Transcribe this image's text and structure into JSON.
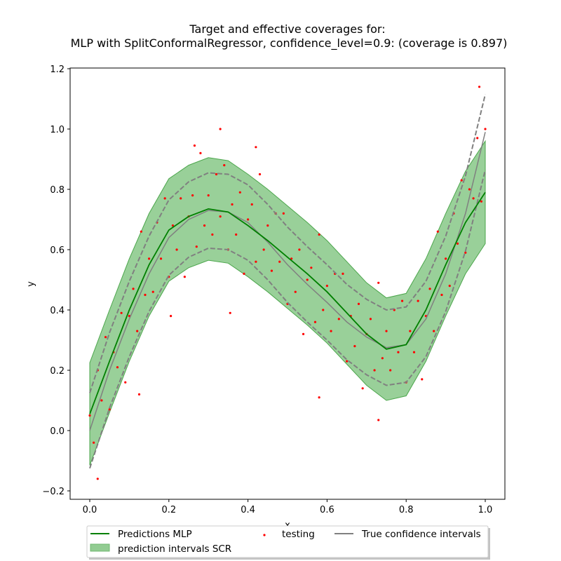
{
  "chart_data": {
    "type": "line",
    "title": "Target and effective coverages for:",
    "subtitle": "MLP with SplitConformalRegressor, confidence_level=0.9: (coverage is 0.897)",
    "xlabel": "x",
    "ylabel": "y",
    "xlim": [
      -0.05,
      1.05
    ],
    "ylim": [
      -0.22,
      1.21
    ],
    "xticks": [
      "0.0",
      "0.2",
      "0.4",
      "0.6",
      "0.8",
      "1.0"
    ],
    "yticks": [
      "−0.2",
      "0.0",
      "0.2",
      "0.4",
      "0.6",
      "0.8",
      "1.0",
      "1.2"
    ],
    "grid": false,
    "legend_position": "bottom-center",
    "colors": {
      "prediction": "#008000",
      "interval_fill": "#77c077",
      "interval_edge": "#4ca64c",
      "testing": "#ff0000",
      "true_ci": "#808080"
    },
    "x_grid": [
      0,
      0.05,
      0.1,
      0.15,
      0.2,
      0.25,
      0.3,
      0.35,
      0.4,
      0.45,
      0.5,
      0.55,
      0.6,
      0.65,
      0.7,
      0.75,
      0.8,
      0.85,
      0.9,
      0.95,
      1.0
    ],
    "series": [
      {
        "name": "Predictions MLP",
        "kind": "line",
        "y": [
          0.055,
          0.23,
          0.4,
          0.55,
          0.665,
          0.71,
          0.735,
          0.725,
          0.68,
          0.63,
          0.575,
          0.52,
          0.46,
          0.39,
          0.32,
          0.27,
          0.285,
          0.4,
          0.55,
          0.69,
          0.79
        ]
      },
      {
        "name": "prediction intervals SCR",
        "kind": "band",
        "lower": [
          -0.115,
          0.06,
          0.23,
          0.38,
          0.495,
          0.54,
          0.565,
          0.555,
          0.51,
          0.46,
          0.405,
          0.35,
          0.29,
          0.22,
          0.15,
          0.1,
          0.115,
          0.23,
          0.38,
          0.52,
          0.62
        ],
        "upper": [
          0.225,
          0.4,
          0.57,
          0.72,
          0.835,
          0.88,
          0.905,
          0.895,
          0.85,
          0.8,
          0.745,
          0.69,
          0.63,
          0.56,
          0.49,
          0.44,
          0.455,
          0.57,
          0.72,
          0.86,
          0.96
        ]
      },
      {
        "name": "True confidence intervals",
        "kind": "dashed-band",
        "center": [
          0.0,
          0.2,
          0.37,
          0.52,
          0.64,
          0.7,
          0.73,
          0.725,
          0.69,
          0.625,
          0.55,
          0.485,
          0.425,
          0.36,
          0.31,
          0.275,
          0.285,
          0.37,
          0.52,
          0.72,
          0.99
        ],
        "lower": [
          -0.125,
          0.075,
          0.245,
          0.395,
          0.515,
          0.575,
          0.605,
          0.6,
          0.565,
          0.5,
          0.425,
          0.36,
          0.3,
          0.235,
          0.185,
          0.15,
          0.16,
          0.245,
          0.395,
          0.595,
          0.865
        ],
        "upper": [
          0.125,
          0.325,
          0.495,
          0.645,
          0.765,
          0.825,
          0.855,
          0.85,
          0.815,
          0.75,
          0.675,
          0.61,
          0.55,
          0.485,
          0.435,
          0.4,
          0.41,
          0.495,
          0.645,
          0.845,
          1.115
        ]
      },
      {
        "name": "testing",
        "kind": "scatter",
        "points": [
          [
            0.0,
            0.05
          ],
          [
            0.01,
            -0.04
          ],
          [
            0.02,
            0.2
          ],
          [
            0.03,
            0.1
          ],
          [
            0.04,
            0.31
          ],
          [
            0.05,
            0.07
          ],
          [
            0.06,
            0.26
          ],
          [
            0.07,
            0.21
          ],
          [
            0.08,
            0.39
          ],
          [
            0.09,
            0.16
          ],
          [
            0.1,
            0.38
          ],
          [
            0.11,
            0.47
          ],
          [
            0.12,
            0.33
          ],
          [
            0.13,
            0.66
          ],
          [
            0.14,
            0.45
          ],
          [
            0.15,
            0.57
          ],
          [
            0.16,
            0.46
          ],
          [
            0.17,
            0.69
          ],
          [
            0.18,
            0.57
          ],
          [
            0.19,
            0.77
          ],
          [
            0.2,
            0.51
          ],
          [
            0.21,
            0.68
          ],
          [
            0.22,
            0.6
          ],
          [
            0.23,
            0.77
          ],
          [
            0.24,
            0.51
          ],
          [
            0.25,
            0.71
          ],
          [
            0.26,
            0.78
          ],
          [
            0.27,
            0.61
          ],
          [
            0.28,
            0.92
          ],
          [
            0.29,
            0.68
          ],
          [
            0.3,
            0.78
          ],
          [
            0.31,
            0.65
          ],
          [
            0.32,
            0.85
          ],
          [
            0.33,
            0.71
          ],
          [
            0.34,
            0.88
          ],
          [
            0.35,
            0.6
          ],
          [
            0.36,
            0.75
          ],
          [
            0.37,
            0.65
          ],
          [
            0.38,
            0.79
          ],
          [
            0.39,
            0.52
          ],
          [
            0.4,
            0.7
          ],
          [
            0.41,
            0.75
          ],
          [
            0.42,
            0.56
          ],
          [
            0.43,
            0.85
          ],
          [
            0.44,
            0.6
          ],
          [
            0.45,
            0.68
          ],
          [
            0.46,
            0.53
          ],
          [
            0.47,
            0.72
          ],
          [
            0.48,
            0.56
          ],
          [
            0.49,
            0.72
          ],
          [
            0.5,
            0.42
          ],
          [
            0.51,
            0.57
          ],
          [
            0.52,
            0.46
          ],
          [
            0.53,
            0.6
          ],
          [
            0.54,
            0.32
          ],
          [
            0.55,
            0.5
          ],
          [
            0.56,
            0.54
          ],
          [
            0.57,
            0.36
          ],
          [
            0.58,
            0.65
          ],
          [
            0.59,
            0.4
          ],
          [
            0.6,
            0.48
          ],
          [
            0.61,
            0.33
          ],
          [
            0.62,
            0.52
          ],
          [
            0.63,
            0.37
          ],
          [
            0.64,
            0.52
          ],
          [
            0.65,
            0.23
          ],
          [
            0.66,
            0.38
          ],
          [
            0.67,
            0.28
          ],
          [
            0.68,
            0.42
          ],
          [
            0.69,
            0.14
          ],
          [
            0.7,
            0.32
          ],
          [
            0.71,
            0.37
          ],
          [
            0.72,
            0.2
          ],
          [
            0.73,
            0.49
          ],
          [
            0.74,
            0.24
          ],
          [
            0.75,
            0.33
          ],
          [
            0.76,
            0.2
          ],
          [
            0.77,
            0.4
          ],
          [
            0.78,
            0.26
          ],
          [
            0.79,
            0.43
          ],
          [
            0.8,
            0.16
          ],
          [
            0.81,
            0.33
          ],
          [
            0.82,
            0.26
          ],
          [
            0.83,
            0.43
          ],
          [
            0.84,
            0.17
          ],
          [
            0.85,
            0.38
          ],
          [
            0.86,
            0.47
          ],
          [
            0.87,
            0.33
          ],
          [
            0.88,
            0.66
          ],
          [
            0.89,
            0.45
          ],
          [
            0.9,
            0.57
          ],
          [
            0.91,
            0.48
          ],
          [
            0.92,
            0.72
          ],
          [
            0.93,
            0.62
          ],
          [
            0.94,
            0.83
          ],
          [
            0.95,
            0.59
          ],
          [
            0.96,
            0.8
          ],
          [
            0.97,
            0.77
          ],
          [
            0.98,
            0.97
          ],
          [
            0.99,
            0.76
          ],
          [
            1.0,
            1.0
          ],
          [
            0.33,
            1.0
          ],
          [
            0.265,
            0.945
          ],
          [
            0.42,
            0.94
          ],
          [
            0.985,
            1.14
          ],
          [
            0.02,
            -0.16
          ],
          [
            0.58,
            0.11
          ],
          [
            0.73,
            0.035
          ],
          [
            0.125,
            0.12
          ],
          [
            0.205,
            0.38
          ],
          [
            0.355,
            0.39
          ]
        ]
      }
    ]
  },
  "legend": {
    "prediction": "Predictions MLP",
    "interval": "prediction intervals SCR",
    "testing": "testing",
    "true_ci": "True confidence intervals"
  }
}
